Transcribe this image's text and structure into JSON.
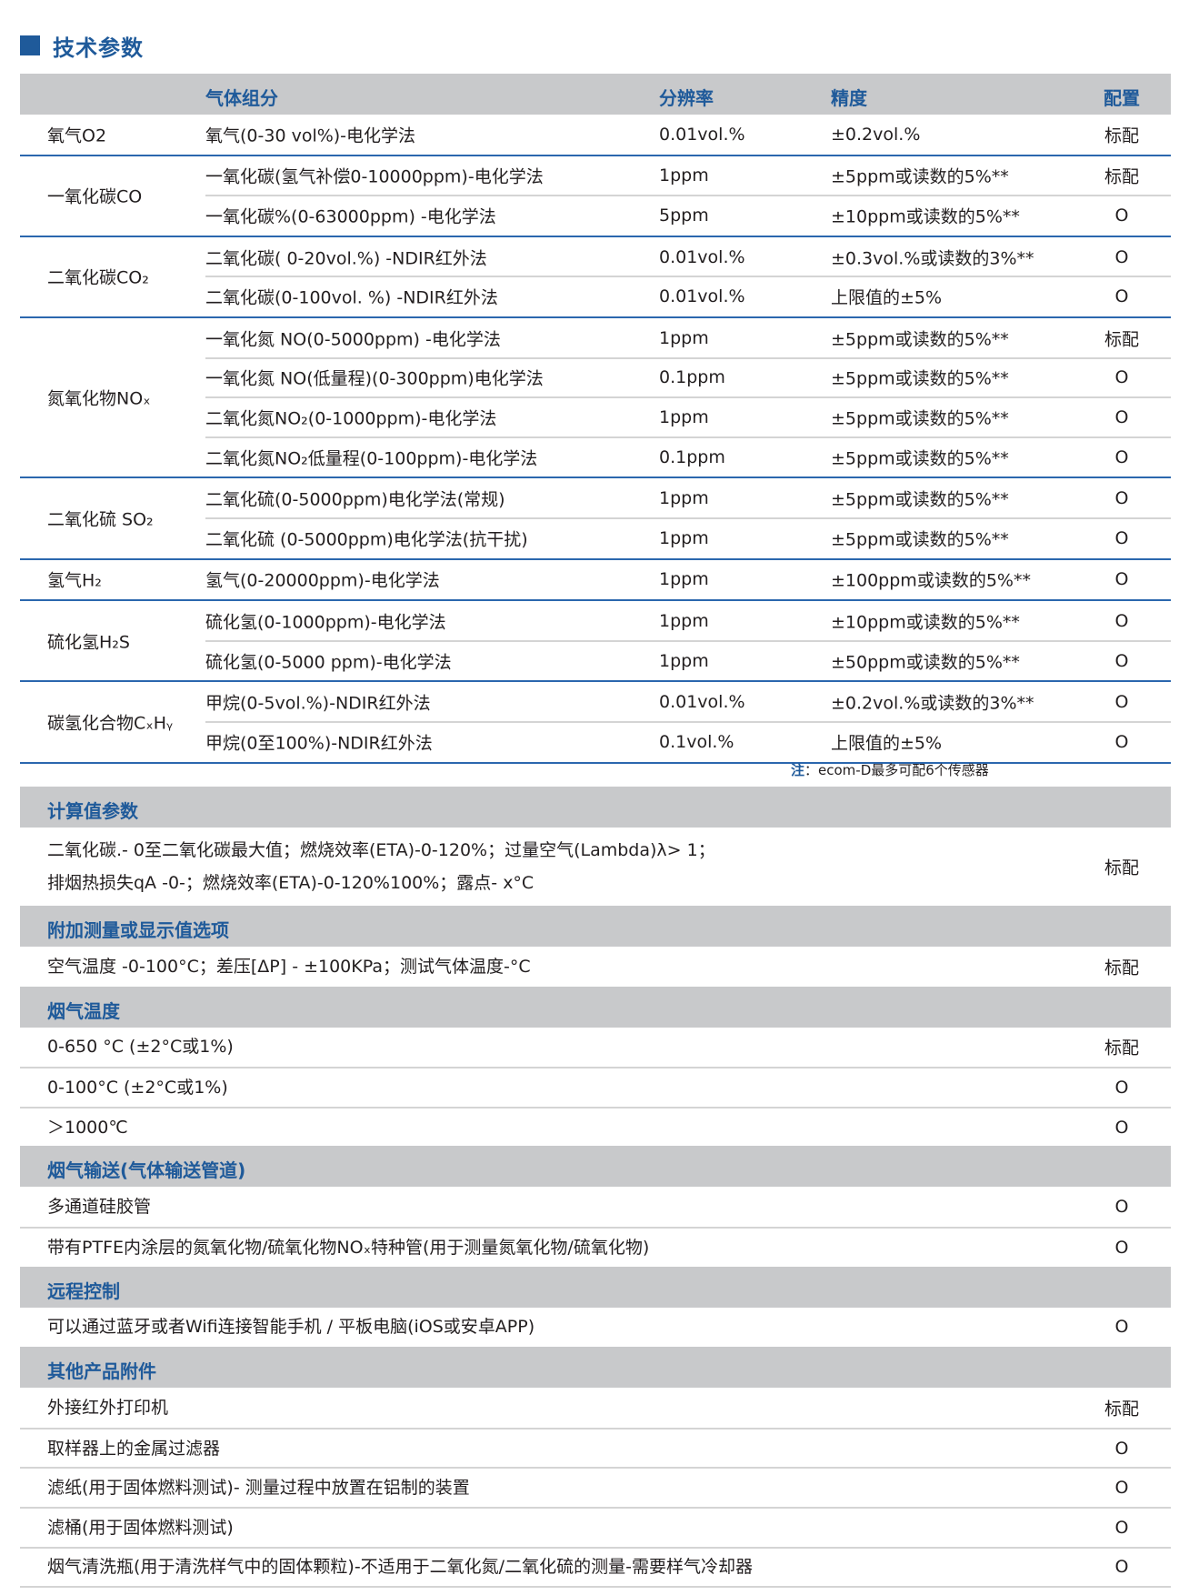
{
  "title": "技术参数",
  "gas_table": {
    "header": {
      "component": "气体组分",
      "resolution": "分辨率",
      "accuracy": "精度",
      "config": "配置"
    },
    "groups": [
      {
        "name": "氧气O2",
        "rows": [
          {
            "component": "氧气(0-30 vol%)-电化学法",
            "resolution": "0.01vol.%",
            "accuracy": "±0.2vol.%",
            "config": "标配"
          }
        ]
      },
      {
        "name": "一氧化碳CO",
        "rows": [
          {
            "component": "一氧化碳(氢气补偿0-10000ppm)-电化学法",
            "resolution": "1ppm",
            "accuracy": " ±5ppm或读数的5%**",
            "config": "标配"
          },
          {
            "component": "一氧化碳%(0-63000ppm) -电化学法",
            "resolution": "5ppm",
            "accuracy": " ±10ppm或读数的5%**",
            "config": "O"
          }
        ]
      },
      {
        "name": "二氧化碳CO₂",
        "rows": [
          {
            "component": "二氧化碳( 0-20vol.%) -NDIR红外法",
            "resolution": "0.01vol.%",
            "accuracy": "±0.3vol.%或读数的3%**",
            "config": "O"
          },
          {
            "component": "二氧化碳(0-100vol. %) -NDIR红外法",
            "resolution": "0.01vol.%",
            "accuracy": "上限值的±5%",
            "config": "O"
          }
        ]
      },
      {
        "name": "氮氧化物NOₓ",
        "rows": [
          {
            "component": "一氧化氮 NO(0-5000ppm) -电化学法",
            "resolution": "1ppm",
            "accuracy": " ±5ppm或读数的5%**",
            "config": "标配"
          },
          {
            "component": "一氧化氮 NO(低量程)(0-300ppm)电化学法",
            "resolution": "0.1ppm",
            "accuracy": " ±5ppm或读数的5%**",
            "config": "O"
          },
          {
            "component": "二氧化氮NO₂(0-1000ppm)-电化学法",
            "resolution": "1ppm",
            "accuracy": " ±5ppm或读数的5%**",
            "config": "O"
          },
          {
            "component": "二氧化氮NO₂低量程(0-100ppm)-电化学法",
            "resolution": "0.1ppm",
            "accuracy": " ±5ppm或读数的5%**",
            "config": "O"
          }
        ]
      },
      {
        "name": "二氧化硫 SO₂",
        "rows": [
          {
            "component": "二氧化硫(0-5000ppm)电化学法(常规)",
            "resolution": "1ppm",
            "accuracy": " ±5ppm或读数的5%**",
            "config": "O"
          },
          {
            "component": "二氧化硫 (0-5000ppm)电化学法(抗干扰)",
            "resolution": "1ppm",
            "accuracy": " ±5ppm或读数的5%**",
            "config": "O"
          }
        ]
      },
      {
        "name": "氢气H₂",
        "rows": [
          {
            "component": "氢气(0-20000ppm)-电化学法",
            "resolution": "1ppm",
            "accuracy": " ±100ppm或读数的5%**",
            "config": "O"
          }
        ]
      },
      {
        "name": "硫化氢H₂S",
        "rows": [
          {
            "component": "硫化氢(0-1000ppm)-电化学法",
            "resolution": "1ppm",
            "accuracy": " ±10ppm或读数的5%**",
            "config": "O"
          },
          {
            "component": "硫化氢(0-5000 ppm)-电化学法",
            "resolution": "1ppm",
            "accuracy": " ±50ppm或读数的5%**",
            "config": "O"
          }
        ]
      },
      {
        "name": "碳氢化合物CₓHᵧ",
        "rows": [
          {
            "component": "甲烷(0-5vol.%)-NDIR红外法",
            "resolution": "0.01vol.%",
            "accuracy": "±0.2vol.%或读数的3%**",
            "config": "O"
          },
          {
            "component": "甲烷(0至100%)-NDIR红外法",
            "resolution": "0.1vol.%",
            "accuracy": "上限值的±5%",
            "config": "O"
          }
        ]
      }
    ]
  },
  "note": {
    "label": "注",
    "text": "：ecom-D最多可配6个传感器"
  },
  "sections": [
    {
      "title": "计算值参数",
      "rows": [
        {
          "lines": [
            "二氧化碳.- 0至二氧化碳最大值；燃烧效率(ETA)-0-120%；过量空气(Lambda)λ> 1；",
            "排烟热损失qA -0-；燃烧效率(ETA)-0-120%100%；露点- x°C"
          ],
          "config": "标配"
        }
      ]
    },
    {
      "title": "附加测量或显示值选项",
      "rows": [
        {
          "lines": [
            "空气温度 -0-100°C；差压[ΔP] - ±100KPa；测试气体温度-°C"
          ],
          "config": "标配"
        }
      ]
    },
    {
      "title": "烟气温度",
      "rows": [
        {
          "lines": [
            "0-650 °C (±2°C或1%)"
          ],
          "config": "标配"
        },
        {
          "lines": [
            "0-100°C (±2°C或1%)"
          ],
          "config": "O"
        },
        {
          "lines": [
            "＞1000℃"
          ],
          "config": "O"
        }
      ]
    },
    {
      "title": "烟气输送(气体输送管道)",
      "rows": [
        {
          "lines": [
            "多通道硅胶管"
          ],
          "config": "O"
        },
        {
          "lines": [
            "带有PTFE内涂层的氮氧化物/硫氧化物NOₓ特种管(用于测量氮氧化物/硫氧化物)"
          ],
          "config": "O"
        }
      ]
    },
    {
      "title": "远程控制",
      "rows": [
        {
          "lines": [
            "可以通过蓝牙或者Wifi连接智能手机 / 平板电脑(iOS或安卓APP)"
          ],
          "config": "O"
        }
      ]
    },
    {
      "title": "其他产品附件",
      "rows": [
        {
          "lines": [
            "外接红外打印机"
          ],
          "config": "标配"
        },
        {
          "lines": [
            "取样器上的金属过滤器"
          ],
          "config": "O"
        },
        {
          "lines": [
            "滤纸(用于固体燃料测试)- 测量过程中放置在铝制的装置"
          ],
          "config": "O"
        },
        {
          "lines": [
            "滤桶(用于固体燃料测试)"
          ],
          "config": "O"
        },
        {
          "lines": [
            "烟气清洗瓶(用于清洗样气中的固体颗粒)-不适用于二氧化氮/二氧化硫的测量-需要样气冷却器"
          ],
          "config": "O"
        }
      ]
    }
  ]
}
